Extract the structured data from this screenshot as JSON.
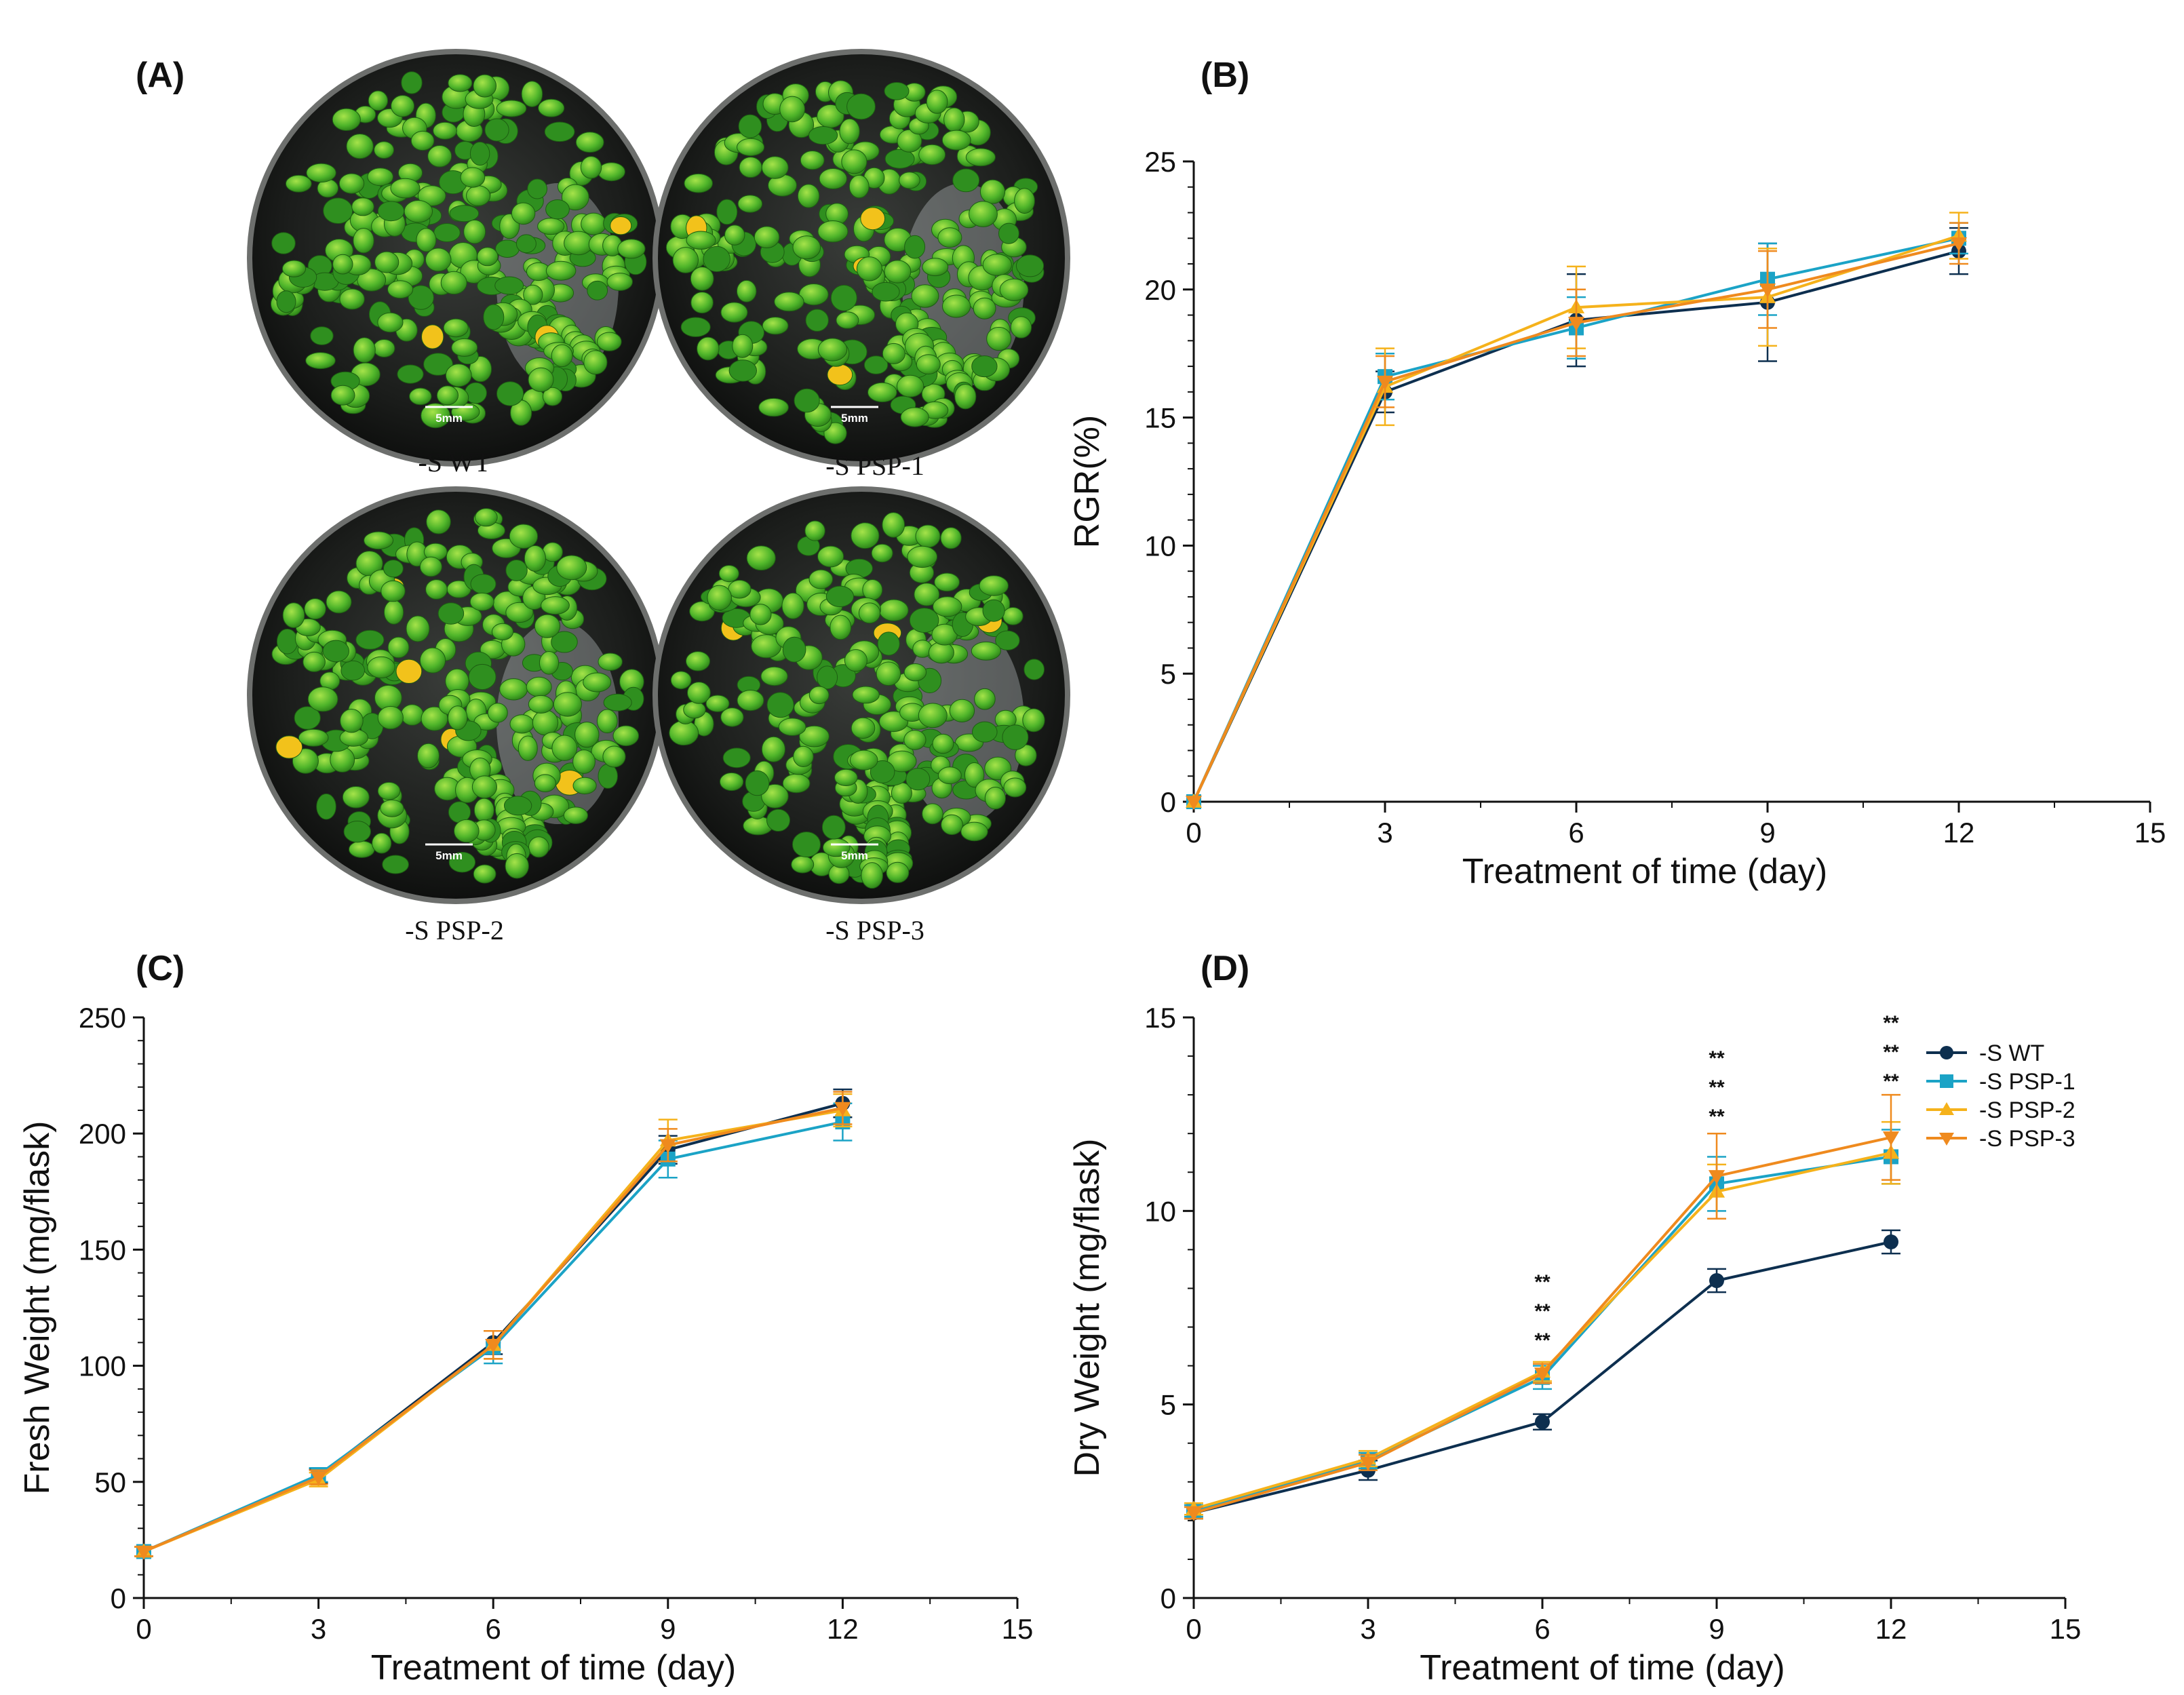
{
  "panels": {
    "A": "(A)",
    "B": "(B)",
    "C": "(C)",
    "D": "(D)"
  },
  "plates": [
    {
      "caption": "-S WT",
      "scale": "5mm"
    },
    {
      "caption": "-S PSP-1",
      "scale": "5mm"
    },
    {
      "caption": "-S PSP-2",
      "scale": "5mm"
    },
    {
      "caption": "-S PSP-3",
      "scale": "5mm"
    }
  ],
  "series_styles": [
    {
      "name": "-S WT",
      "color": "#0d2f4f",
      "marker": "circle"
    },
    {
      "name": "-S PSP-1",
      "color": "#1ba3c6",
      "marker": "square"
    },
    {
      "name": "-S PSP-2",
      "color": "#f5b21b",
      "marker": "triangle-up"
    },
    {
      "name": "-S PSP-3",
      "color": "#ef8a1e",
      "marker": "triangle-down"
    }
  ],
  "chart_data": [
    {
      "id": "B",
      "type": "line",
      "xlabel": "Treatment of time (day)",
      "ylabel": "RGR(%)",
      "xlim": [
        0,
        15
      ],
      "ylim": [
        0,
        25
      ],
      "xticks": [
        0,
        3,
        6,
        9,
        12,
        15
      ],
      "yticks": [
        0,
        5,
        10,
        15,
        20,
        25
      ],
      "x": [
        0,
        3,
        6,
        9,
        12
      ],
      "series": [
        {
          "name": "-S WT",
          "values": [
            0,
            16.0,
            18.8,
            19.5,
            21.5
          ],
          "errors": [
            0,
            0.8,
            1.8,
            2.3,
            0.9
          ]
        },
        {
          "name": "-S PSP-1",
          "values": [
            0,
            16.6,
            18.5,
            20.4,
            22.0
          ],
          "errors": [
            0,
            0.9,
            1.2,
            1.4,
            0.6
          ]
        },
        {
          "name": "-S PSP-2",
          "values": [
            0,
            16.2,
            19.3,
            19.7,
            22.1
          ],
          "errors": [
            0,
            1.5,
            1.6,
            1.9,
            0.9
          ]
        },
        {
          "name": "-S PSP-3",
          "values": [
            0,
            16.4,
            18.7,
            20.0,
            21.8
          ],
          "errors": [
            0,
            1.0,
            1.3,
            1.5,
            0.8
          ]
        }
      ]
    },
    {
      "id": "C",
      "type": "line",
      "xlabel": "Treatment of time (day)",
      "ylabel": "Fresh Weight (mg/flask)",
      "xlim": [
        0,
        15
      ],
      "ylim": [
        0,
        250
      ],
      "xticks": [
        0,
        3,
        6,
        9,
        12,
        15
      ],
      "yticks": [
        0,
        50,
        100,
        150,
        200,
        250
      ],
      "x": [
        0,
        3,
        6,
        9,
        12
      ],
      "series": [
        {
          "name": "-S WT",
          "values": [
            20,
            52.5,
            110,
            193,
            213
          ],
          "errors": [
            2,
            3,
            5,
            6,
            6
          ]
        },
        {
          "name": "-S PSP-1",
          "values": [
            20,
            53,
            108,
            189,
            205
          ],
          "errors": [
            2,
            3,
            7,
            8,
            8
          ]
        },
        {
          "name": "-S PSP-2",
          "values": [
            20,
            51,
            109,
            197,
            210
          ],
          "errors": [
            2,
            3,
            6,
            9,
            7
          ]
        },
        {
          "name": "-S PSP-3",
          "values": [
            20,
            52,
            109,
            195,
            211
          ],
          "errors": [
            2,
            3,
            6,
            7,
            7
          ]
        }
      ]
    },
    {
      "id": "D",
      "type": "line",
      "xlabel": "Treatment of time (day)",
      "ylabel": "Dry Weight (mg/flask)",
      "xlim": [
        0,
        15
      ],
      "ylim": [
        0,
        15
      ],
      "xticks": [
        0,
        3,
        6,
        9,
        12,
        15
      ],
      "yticks": [
        0,
        5,
        10,
        15
      ],
      "x": [
        0,
        3,
        6,
        9,
        12
      ],
      "legend": "top-right",
      "annotations": [
        {
          "x": 6,
          "lines": [
            "**",
            "**",
            "**"
          ]
        },
        {
          "x": 9,
          "lines": [
            "**",
            "**",
            "**"
          ]
        },
        {
          "x": 12,
          "lines": [
            "**",
            "**",
            "**"
          ]
        }
      ],
      "series": [
        {
          "name": "-S WT",
          "values": [
            2.2,
            3.3,
            4.55,
            8.2,
            9.2
          ],
          "errors": [
            0.15,
            0.25,
            0.2,
            0.3,
            0.3
          ]
        },
        {
          "name": "-S PSP-1",
          "values": [
            2.25,
            3.55,
            5.7,
            10.7,
            11.4
          ],
          "errors": [
            0.15,
            0.2,
            0.3,
            0.7,
            0.7
          ]
        },
        {
          "name": "-S PSP-2",
          "values": [
            2.3,
            3.6,
            5.85,
            10.5,
            11.5
          ],
          "errors": [
            0.15,
            0.2,
            0.25,
            0.7,
            0.8
          ]
        },
        {
          "name": "-S PSP-3",
          "values": [
            2.2,
            3.5,
            5.8,
            10.9,
            11.9
          ],
          "errors": [
            0.15,
            0.2,
            0.25,
            1.1,
            1.1
          ]
        }
      ]
    }
  ]
}
